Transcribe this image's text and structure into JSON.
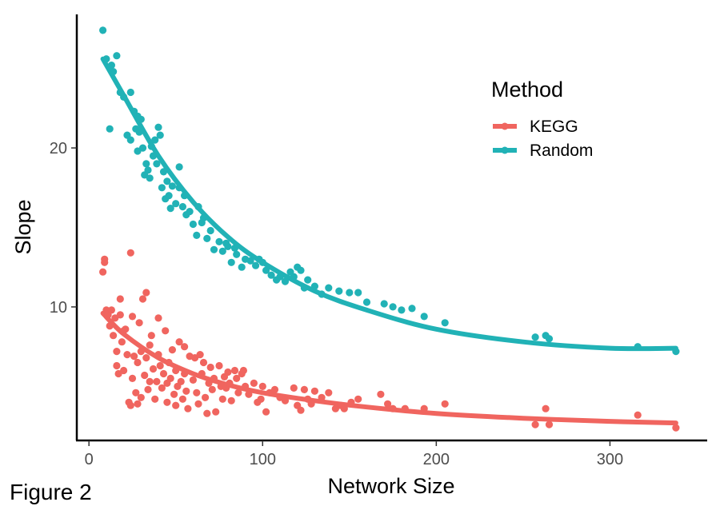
{
  "chart_data": {
    "type": "scatter",
    "xlabel": "Network Size",
    "ylabel": "Slope",
    "xlim": [
      -7,
      356
    ],
    "ylim": [
      1.6,
      28.4
    ],
    "xticks": [
      0,
      100,
      200,
      300
    ],
    "yticks": [
      10,
      20
    ],
    "grid": false,
    "legend": {
      "title": "Method",
      "position": "top-right"
    },
    "caption": "Figure 2",
    "series": [
      {
        "name": "KEGG",
        "color": "#F0655F",
        "trend": [
          [
            8,
            9.6
          ],
          [
            20,
            8.3
          ],
          [
            40,
            6.8
          ],
          [
            60,
            5.8
          ],
          [
            80,
            5.1
          ],
          [
            100,
            4.6
          ],
          [
            130,
            4.1
          ],
          [
            160,
            3.7
          ],
          [
            200,
            3.3
          ],
          [
            250,
            3.0
          ],
          [
            300,
            2.8
          ],
          [
            338,
            2.7
          ]
        ],
        "points": [
          [
            8,
            12.2
          ],
          [
            9,
            13.0
          ],
          [
            9,
            12.8
          ],
          [
            10,
            9.8
          ],
          [
            11,
            9.5
          ],
          [
            12,
            8.8
          ],
          [
            13,
            9.8
          ],
          [
            14,
            8.2
          ],
          [
            15,
            9.3
          ],
          [
            16,
            6.3
          ],
          [
            16,
            7.2
          ],
          [
            17,
            5.8
          ],
          [
            18,
            10.5
          ],
          [
            18,
            9.5
          ],
          [
            19,
            7.8
          ],
          [
            20,
            8.5
          ],
          [
            20,
            6.0
          ],
          [
            21,
            8.6
          ],
          [
            22,
            7.0
          ],
          [
            23,
            4.0
          ],
          [
            24,
            13.4
          ],
          [
            24,
            3.8
          ],
          [
            25,
            9.4
          ],
          [
            25,
            5.5
          ],
          [
            26,
            6.9
          ],
          [
            27,
            4.6
          ],
          [
            28,
            6.5
          ],
          [
            28,
            3.9
          ],
          [
            29,
            9.0
          ],
          [
            30,
            7.2
          ],
          [
            30,
            4.3
          ],
          [
            31,
            10.5
          ],
          [
            32,
            5.7
          ],
          [
            33,
            10.9
          ],
          [
            33,
            6.8
          ],
          [
            34,
            4.8
          ],
          [
            35,
            7.6
          ],
          [
            35,
            5.3
          ],
          [
            36,
            8.2
          ],
          [
            37,
            6.1
          ],
          [
            38,
            4.2
          ],
          [
            39,
            5.3
          ],
          [
            40,
            9.3
          ],
          [
            40,
            7.0
          ],
          [
            41,
            6.3
          ],
          [
            42,
            4.9
          ],
          [
            43,
            5.8
          ],
          [
            44,
            8.5
          ],
          [
            45,
            5.2
          ],
          [
            45,
            4.0
          ],
          [
            46,
            6.5
          ],
          [
            47,
            5.5
          ],
          [
            48,
            7.3
          ],
          [
            49,
            4.5
          ],
          [
            50,
            6.0
          ],
          [
            50,
            3.8
          ],
          [
            51,
            5.0
          ],
          [
            52,
            7.8
          ],
          [
            53,
            5.3
          ],
          [
            54,
            4.2
          ],
          [
            55,
            7.5
          ],
          [
            55,
            5.8
          ],
          [
            56,
            4.7
          ],
          [
            57,
            3.6
          ],
          [
            58,
            6.9
          ],
          [
            60,
            5.4
          ],
          [
            61,
            6.8
          ],
          [
            62,
            4.6
          ],
          [
            63,
            3.9
          ],
          [
            64,
            7.0
          ],
          [
            65,
            5.8
          ],
          [
            66,
            6.5
          ],
          [
            67,
            4.3
          ],
          [
            68,
            3.3
          ],
          [
            69,
            5.2
          ],
          [
            70,
            6.2
          ],
          [
            71,
            4.8
          ],
          [
            72,
            5.5
          ],
          [
            73,
            3.4
          ],
          [
            75,
            6.3
          ],
          [
            76,
            5.0
          ],
          [
            77,
            4.2
          ],
          [
            78,
            5.6
          ],
          [
            79,
            4.9
          ],
          [
            80,
            5.9
          ],
          [
            81,
            5.2
          ],
          [
            82,
            4.1
          ],
          [
            84,
            6.0
          ],
          [
            85,
            5.5
          ],
          [
            86,
            4.6
          ],
          [
            88,
            5.8
          ],
          [
            89,
            6.0
          ],
          [
            90,
            5.0
          ],
          [
            92,
            4.5
          ],
          [
            95,
            5.2
          ],
          [
            97,
            4.0
          ],
          [
            99,
            4.2
          ],
          [
            100,
            5.0
          ],
          [
            102,
            3.4
          ],
          [
            104,
            4.6
          ],
          [
            107,
            4.8
          ],
          [
            110,
            4.3
          ],
          [
            113,
            4.1
          ],
          [
            118,
            4.9
          ],
          [
            120,
            3.8
          ],
          [
            122,
            3.5
          ],
          [
            124,
            4.8
          ],
          [
            126,
            4.2
          ],
          [
            128,
            3.9
          ],
          [
            130,
            4.7
          ],
          [
            134,
            4.3
          ],
          [
            138,
            4.6
          ],
          [
            142,
            3.6
          ],
          [
            145,
            3.8
          ],
          [
            147,
            3.6
          ],
          [
            151,
            4.0
          ],
          [
            155,
            4.2
          ],
          [
            168,
            4.5
          ],
          [
            172,
            3.9
          ],
          [
            175,
            3.6
          ],
          [
            182,
            3.6
          ],
          [
            193,
            3.6
          ],
          [
            205,
            3.9
          ],
          [
            257,
            2.6
          ],
          [
            263,
            3.6
          ],
          [
            265,
            2.6
          ],
          [
            316,
            3.2
          ],
          [
            338,
            2.4
          ]
        ]
      },
      {
        "name": "Random",
        "color": "#21B2B6",
        "trend": [
          [
            8,
            25.6
          ],
          [
            20,
            23.3
          ],
          [
            40,
            19.5
          ],
          [
            60,
            16.6
          ],
          [
            80,
            14.4
          ],
          [
            100,
            12.8
          ],
          [
            130,
            11.0
          ],
          [
            160,
            9.8
          ],
          [
            200,
            8.6
          ],
          [
            250,
            7.8
          ],
          [
            300,
            7.4
          ],
          [
            338,
            7.4
          ]
        ],
        "points": [
          [
            8,
            27.4
          ],
          [
            10,
            25.6
          ],
          [
            12,
            21.2
          ],
          [
            13,
            25.2
          ],
          [
            14,
            24.8
          ],
          [
            16,
            25.8
          ],
          [
            18,
            23.5
          ],
          [
            20,
            23.2
          ],
          [
            22,
            20.8
          ],
          [
            24,
            20.5
          ],
          [
            24,
            23.5
          ],
          [
            26,
            22.3
          ],
          [
            27,
            21.2
          ],
          [
            28,
            19.8
          ],
          [
            28,
            22.0
          ],
          [
            29,
            21.0
          ],
          [
            30,
            21.8
          ],
          [
            31,
            20.0
          ],
          [
            32,
            18.3
          ],
          [
            33,
            19.0
          ],
          [
            34,
            18.6
          ],
          [
            35,
            18.1
          ],
          [
            36,
            20.1
          ],
          [
            37,
            19.5
          ],
          [
            38,
            20.5
          ],
          [
            39,
            19.0
          ],
          [
            40,
            21.3
          ],
          [
            41,
            20.8
          ],
          [
            42,
            17.5
          ],
          [
            43,
            18.5
          ],
          [
            44,
            16.8
          ],
          [
            45,
            17.9
          ],
          [
            46,
            17.0
          ],
          [
            47,
            16.2
          ],
          [
            48,
            17.6
          ],
          [
            50,
            16.5
          ],
          [
            52,
            18.8
          ],
          [
            52,
            17.5
          ],
          [
            54,
            16.3
          ],
          [
            55,
            17.0
          ],
          [
            56,
            15.8
          ],
          [
            58,
            16.0
          ],
          [
            60,
            15.2
          ],
          [
            62,
            14.5
          ],
          [
            63,
            16.3
          ],
          [
            65,
            15.3
          ],
          [
            66,
            15.6
          ],
          [
            68,
            14.3
          ],
          [
            70,
            14.8
          ],
          [
            72,
            13.6
          ],
          [
            75,
            14.1
          ],
          [
            77,
            13.5
          ],
          [
            79,
            14.0
          ],
          [
            80,
            13.8
          ],
          [
            82,
            12.8
          ],
          [
            84,
            13.7
          ],
          [
            85,
            13.3
          ],
          [
            88,
            12.5
          ],
          [
            90,
            13.0
          ],
          [
            93,
            12.9
          ],
          [
            96,
            12.6
          ],
          [
            98,
            13.0
          ],
          [
            100,
            12.8
          ],
          [
            102,
            12.3
          ],
          [
            105,
            12.0
          ],
          [
            108,
            11.7
          ],
          [
            110,
            11.9
          ],
          [
            113,
            11.6
          ],
          [
            116,
            12.2
          ],
          [
            118,
            11.9
          ],
          [
            120,
            12.5
          ],
          [
            122,
            12.3
          ],
          [
            124,
            11.2
          ],
          [
            126,
            11.7
          ],
          [
            130,
            11.3
          ],
          [
            134,
            10.8
          ],
          [
            138,
            11.2
          ],
          [
            144,
            11.0
          ],
          [
            150,
            10.9
          ],
          [
            155,
            10.9
          ],
          [
            160,
            10.3
          ],
          [
            170,
            10.2
          ],
          [
            175,
            10.0
          ],
          [
            180,
            9.8
          ],
          [
            186,
            9.9
          ],
          [
            193,
            9.4
          ],
          [
            205,
            9.0
          ],
          [
            257,
            8.1
          ],
          [
            263,
            8.2
          ],
          [
            265,
            8.0
          ],
          [
            316,
            7.5
          ],
          [
            338,
            7.2
          ]
        ]
      }
    ]
  }
}
